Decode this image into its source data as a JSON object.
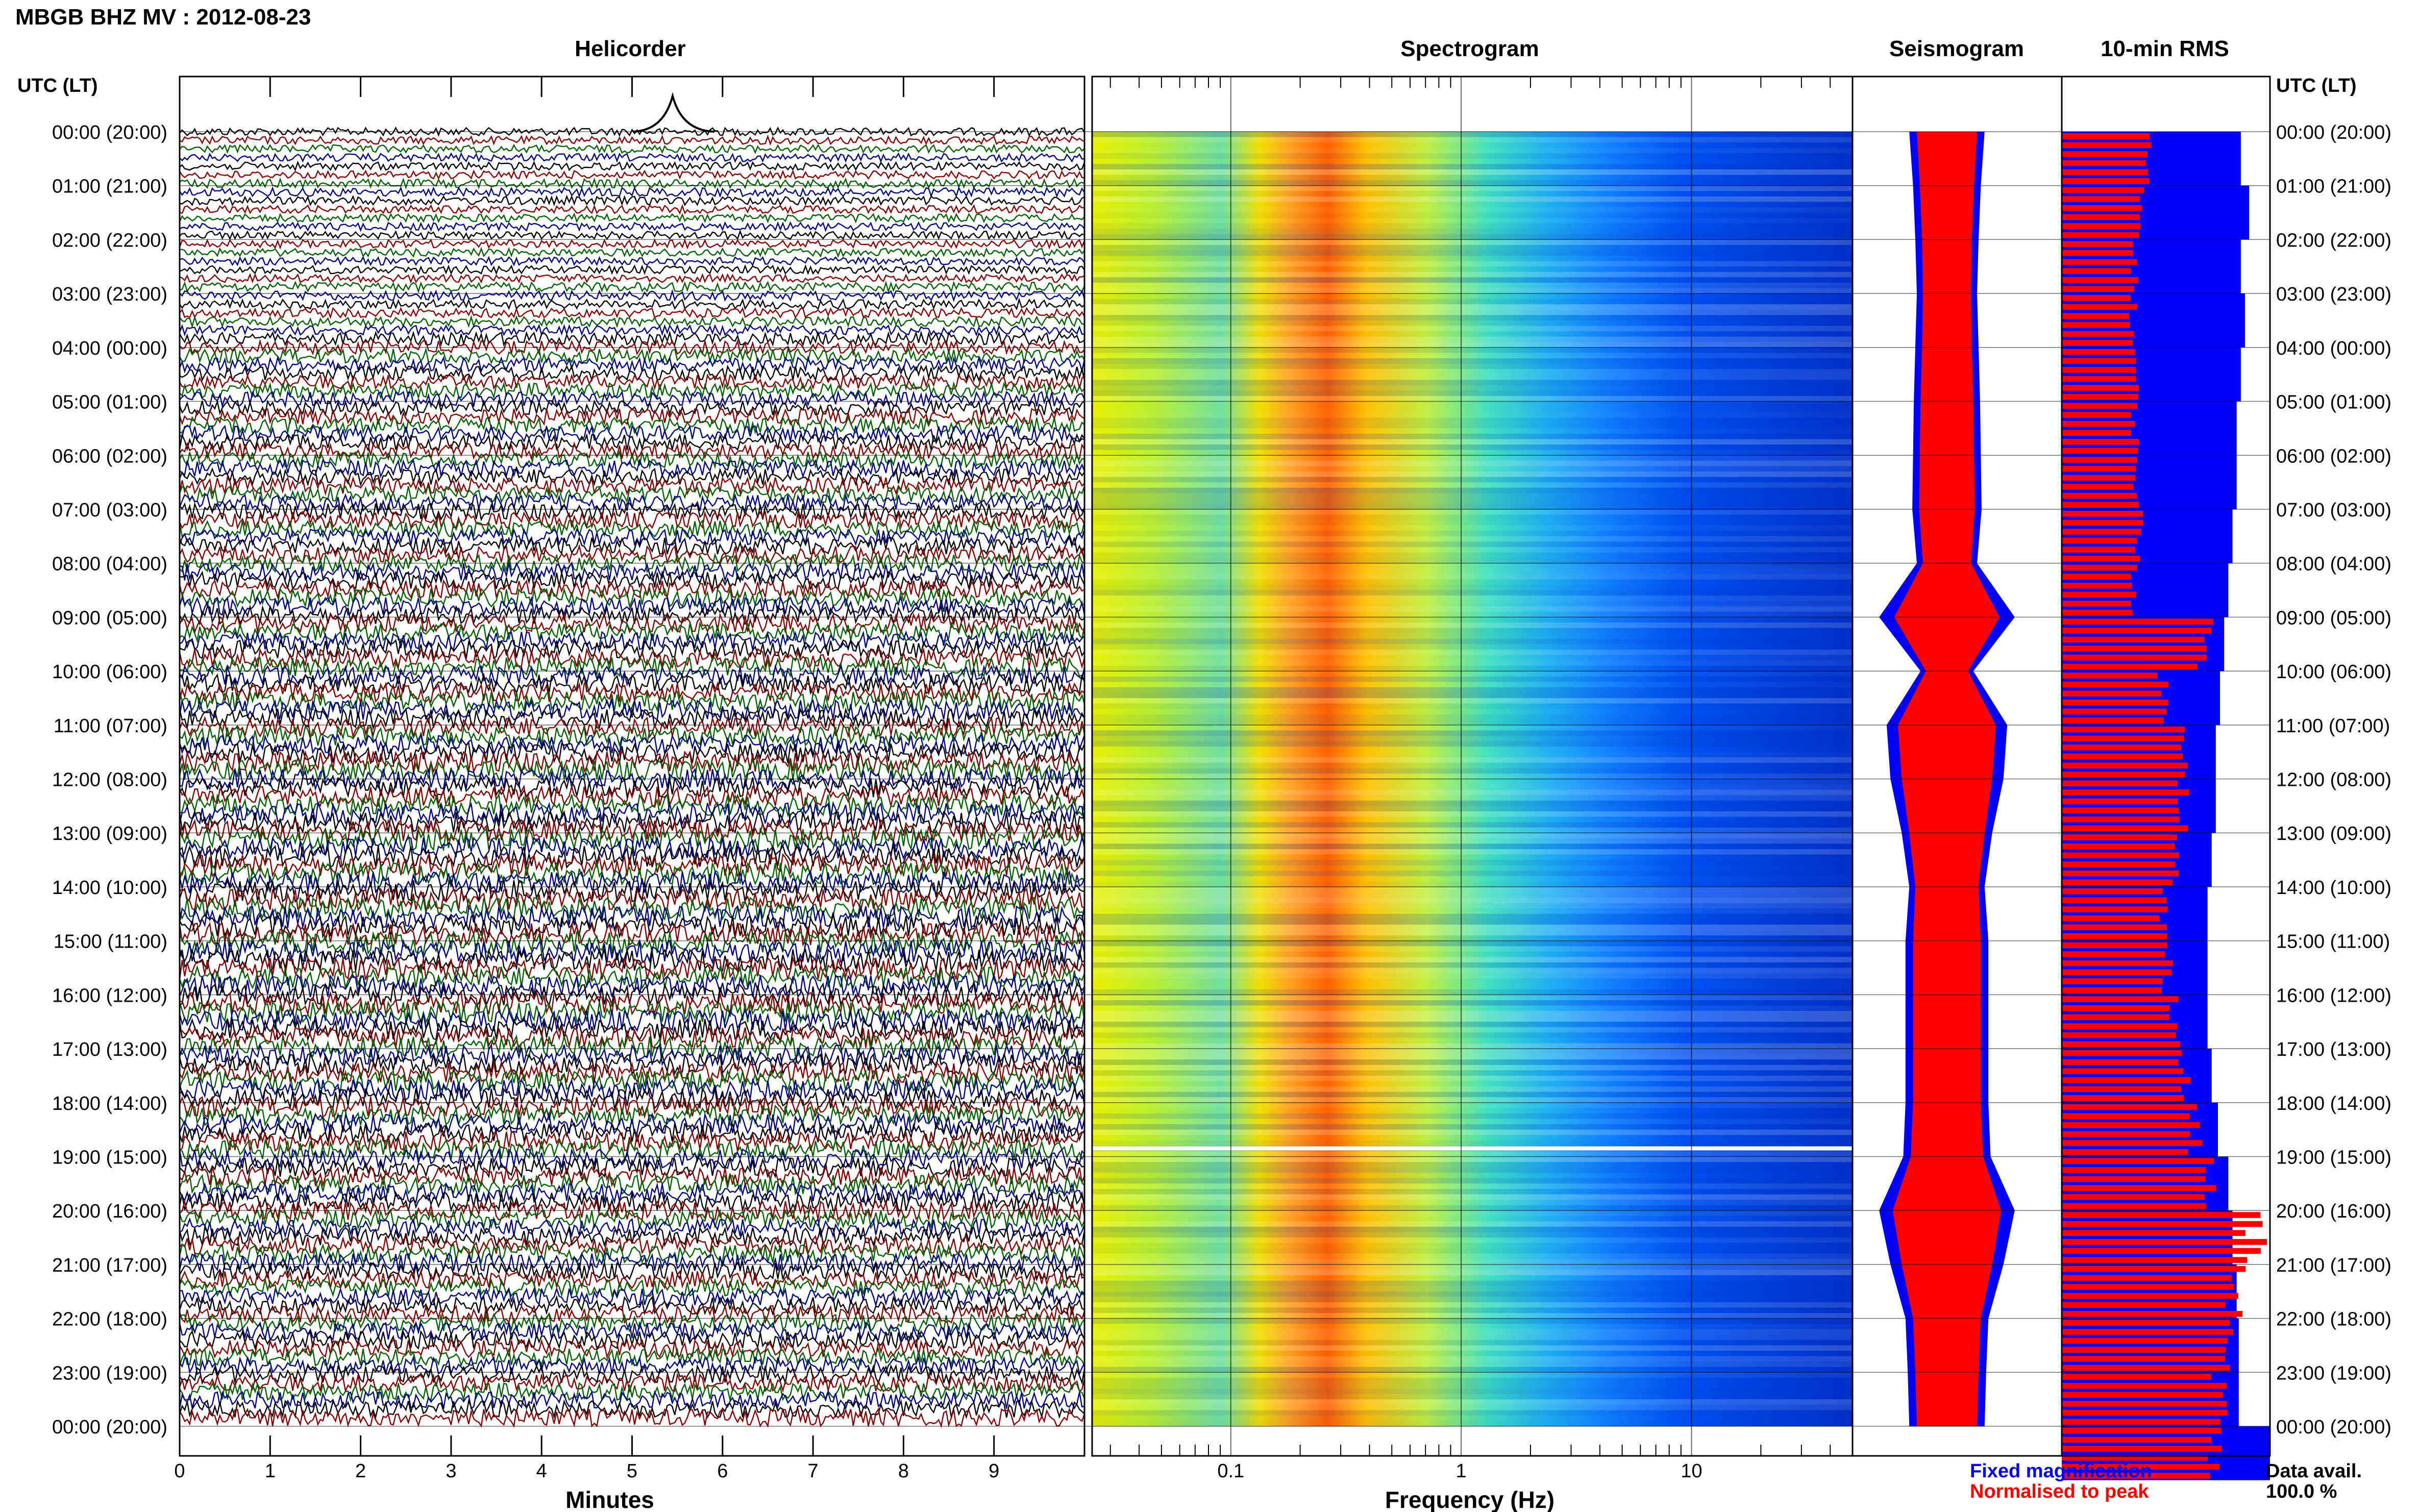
{
  "header": {
    "title": "MBGB BHZ MV : 2012-08-23",
    "time_axis_label": "UTC (LT)"
  },
  "panels": {
    "helicorder": "Helicorder",
    "spectrogram": "Spectrogram",
    "seismogram": "Seismogram",
    "rms": "10-min RMS"
  },
  "legend": {
    "fixed": "Fixed magnification",
    "normalised": "Normalised to peak",
    "fixed_color": "#0000ff",
    "normalised_color": "#ff0000"
  },
  "data_avail": {
    "label": "Data avail.",
    "value": "100.0 %"
  },
  "colors": {
    "trace_cycle": [
      "#000000",
      "#8b0000",
      "#006400",
      "#00008b"
    ],
    "fixed": "#0000ff",
    "normalised": "#ff0000",
    "spectrogram_scale": [
      "#ffff00",
      "#ffa500",
      "#ff4000",
      "#00c0ff",
      "#0000c0"
    ]
  },
  "chart_data": [
    {
      "type": "line",
      "title": "Helicorder",
      "xlabel": "Minutes",
      "x_ticks": [
        "0",
        "1",
        "2",
        "3",
        "4",
        "5",
        "6",
        "7",
        "8",
        "9"
      ],
      "xlim": [
        0,
        10
      ],
      "y_ticks": [
        "00:00 (20:00)",
        "01:00 (21:00)",
        "02:00 (22:00)",
        "03:00 (23:00)",
        "04:00 (00:00)",
        "05:00 (01:00)",
        "06:00 (02:00)",
        "07:00 (03:00)",
        "08:00 (04:00)",
        "09:00 (05:00)",
        "10:00 (06:00)",
        "11:00 (07:00)",
        "12:00 (08:00)",
        "13:00 (09:00)",
        "14:00 (10:00)",
        "15:00 (11:00)",
        "16:00 (12:00)",
        "17:00 (13:00)",
        "18:00 (14:00)",
        "19:00 (15:00)",
        "20:00 (16:00)",
        "21:00 (17:00)",
        "22:00 (18:00)",
        "23:00 (19:00)",
        "00:00 (20:00)"
      ],
      "rows_per_hour": 6,
      "row_amplitude_relative": [
        0.5,
        0.5,
        0.5,
        0.5,
        0.5,
        0.5,
        0.55,
        0.55,
        0.55,
        0.5,
        0.5,
        0.5,
        0.5,
        0.5,
        0.5,
        0.5,
        0.5,
        0.5,
        0.6,
        0.6,
        0.6,
        0.6,
        0.6,
        0.6,
        0.8,
        0.85,
        0.9,
        0.9,
        0.9,
        0.9,
        0.95,
        0.95,
        0.95,
        1.0,
        1.0,
        1.0,
        1.0,
        1.0,
        1.0,
        1.05,
        1.05,
        1.05,
        1.05,
        1.05,
        1.05,
        1.05,
        1.05,
        1.05,
        1.1,
        1.1,
        1.1,
        1.1,
        1.1,
        1.1,
        1.15,
        1.15,
        1.15,
        1.15,
        1.15,
        1.15,
        1.2,
        1.2,
        1.2,
        1.2,
        1.2,
        1.2,
        1.25,
        1.25,
        1.25,
        1.25,
        1.25,
        1.25,
        1.3,
        1.3,
        1.3,
        1.3,
        1.3,
        1.3,
        1.35,
        1.35,
        1.35,
        1.35,
        1.35,
        1.35,
        1.4,
        1.4,
        1.4,
        1.4,
        1.4,
        1.4,
        1.4,
        1.4,
        1.4,
        1.4,
        1.4,
        1.4,
        1.4,
        1.4,
        1.4,
        1.4,
        1.4,
        1.4,
        1.35,
        1.35,
        1.35,
        1.35,
        1.35,
        1.35,
        1.3,
        1.3,
        1.3,
        1.3,
        1.3,
        1.3,
        1.25,
        1.25,
        1.25,
        1.25,
        1.25,
        1.25,
        1.2,
        1.2,
        1.2,
        1.2,
        1.2,
        1.2,
        1.15,
        1.15,
        1.15,
        1.15,
        1.15,
        1.15,
        1.1,
        1.1,
        1.1,
        1.1,
        1.1,
        1.1,
        1.1,
        1.1,
        1.1,
        1.1,
        1.1,
        1.1,
        1.1,
        1.1,
        1.1,
        1.1,
        1.1,
        1.1
      ]
    },
    {
      "type": "heatmap",
      "title": "Spectrogram",
      "xlabel": "Frequency (Hz)",
      "x_scale": "log",
      "xlim": [
        0.025,
        50
      ],
      "x_ticks": [
        {
          "value": 0.1,
          "label": "0.1"
        },
        {
          "value": 1,
          "label": "1"
        },
        {
          "value": 10,
          "label": "10"
        }
      ],
      "peak_frequency_hz": 0.3,
      "data_gap_utc": "19:00"
    },
    {
      "type": "area",
      "title": "Seismogram",
      "series": [
        {
          "name": "Fixed magnification",
          "color": "#0000ff",
          "amplitude_relative": [
            0.5,
            0.45,
            0.42,
            0.4,
            0.42,
            0.44,
            0.45,
            0.46,
            0.4,
            0.9,
            0.35,
            0.8,
            0.75,
            0.6,
            0.5,
            0.55,
            0.55,
            0.55,
            0.55,
            0.58,
            0.9,
            0.75,
            0.55,
            0.52,
            0.5
          ]
        },
        {
          "name": "Normalised to peak",
          "color": "#ff0000",
          "amplitude_relative": [
            0.4,
            0.36,
            0.33,
            0.32,
            0.33,
            0.35,
            0.36,
            0.37,
            0.32,
            0.7,
            0.28,
            0.65,
            0.6,
            0.5,
            0.42,
            0.45,
            0.45,
            0.45,
            0.45,
            0.48,
            0.72,
            0.6,
            0.45,
            0.42,
            0.4
          ]
        }
      ]
    },
    {
      "type": "bar",
      "title": "10-min RMS",
      "series": [
        {
          "name": "Fixed magnification",
          "color": "#0000ff",
          "values_relative": [
            0.86,
            0.9,
            0.86,
            0.88,
            0.86,
            0.84,
            0.84,
            0.82,
            0.8,
            0.78,
            0.76,
            0.74,
            0.74,
            0.72,
            0.7,
            0.7,
            0.7,
            0.72,
            0.75,
            0.8,
            0.82,
            0.84,
            0.85,
            0.85,
            1.0
          ]
        },
        {
          "name": "Normalised to peak",
          "color": "#ff0000",
          "values_relative": [
            0.42,
            0.38,
            0.36,
            0.35,
            0.36,
            0.36,
            0.37,
            0.38,
            0.36,
            0.7,
            0.5,
            0.62,
            0.6,
            0.55,
            0.5,
            0.52,
            0.56,
            0.6,
            0.65,
            0.72,
            0.95,
            0.85,
            0.8,
            0.78,
            0.75
          ]
        }
      ]
    }
  ]
}
